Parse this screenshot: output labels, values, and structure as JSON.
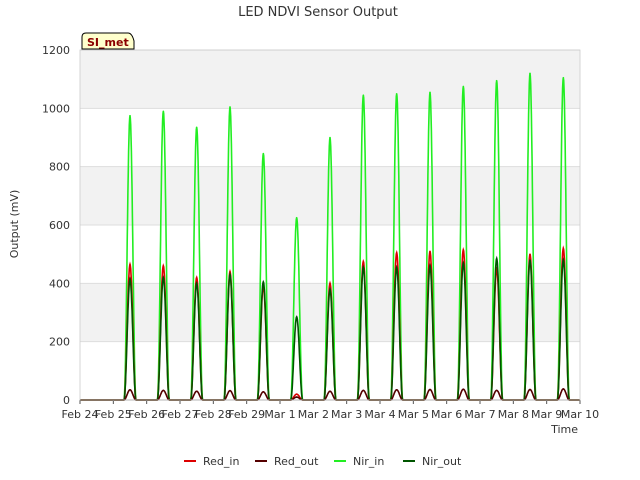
{
  "chart_data": {
    "type": "line",
    "title": "LED NDVI Sensor Output",
    "xlabel": "Time",
    "ylabel": "Output (mV)",
    "site_label": "SI_met",
    "ylim": [
      0,
      1200
    ],
    "yticks": [
      0,
      200,
      400,
      600,
      800,
      1000,
      1200
    ],
    "xlim": [
      "Feb 24",
      "Mar 10"
    ],
    "x_tick_labels": [
      "Feb 24",
      "Feb 25",
      "Feb 26",
      "Feb 27",
      "Feb 28",
      "Feb 29",
      "Mar 1",
      "Mar 2",
      "Mar 3",
      "Mar 4",
      "Mar 5",
      "Mar 6",
      "Mar 7",
      "Mar 8",
      "Mar 9",
      "Mar 10"
    ],
    "grid": true,
    "legend_position": "bottom",
    "daily_peak_dates": [
      "Feb 25",
      "Feb 26",
      "Feb 27",
      "Feb 28",
      "Feb 29",
      "Mar 1",
      "Mar 2",
      "Mar 3",
      "Mar 4",
      "Mar 5",
      "Mar 6",
      "Mar 7",
      "Mar 8",
      "Mar 9"
    ],
    "series": [
      {
        "name": "Red_in",
        "color": "#dd0000",
        "daily_peaks": [
          465,
          460,
          420,
          440,
          390,
          20,
          400,
          475,
          505,
          510,
          515,
          450,
          500,
          520
        ],
        "night_value": 0
      },
      {
        "name": "Red_out",
        "color": "#550000",
        "daily_peaks": [
          35,
          33,
          30,
          32,
          28,
          10,
          30,
          33,
          35,
          36,
          37,
          33,
          36,
          38
        ],
        "night_value": 0
      },
      {
        "name": "Nir_in",
        "color": "#22ee22",
        "daily_peaks": [
          975,
          990,
          935,
          1005,
          845,
          625,
          900,
          1045,
          1050,
          1055,
          1075,
          1095,
          1120,
          1105
        ],
        "night_value": 0
      },
      {
        "name": "Nir_out",
        "color": "#005500",
        "daily_peaks": [
          415,
          420,
          400,
          430,
          405,
          285,
          380,
          455,
          455,
          460,
          470,
          485,
          480,
          480
        ],
        "night_value": 0
      }
    ]
  }
}
